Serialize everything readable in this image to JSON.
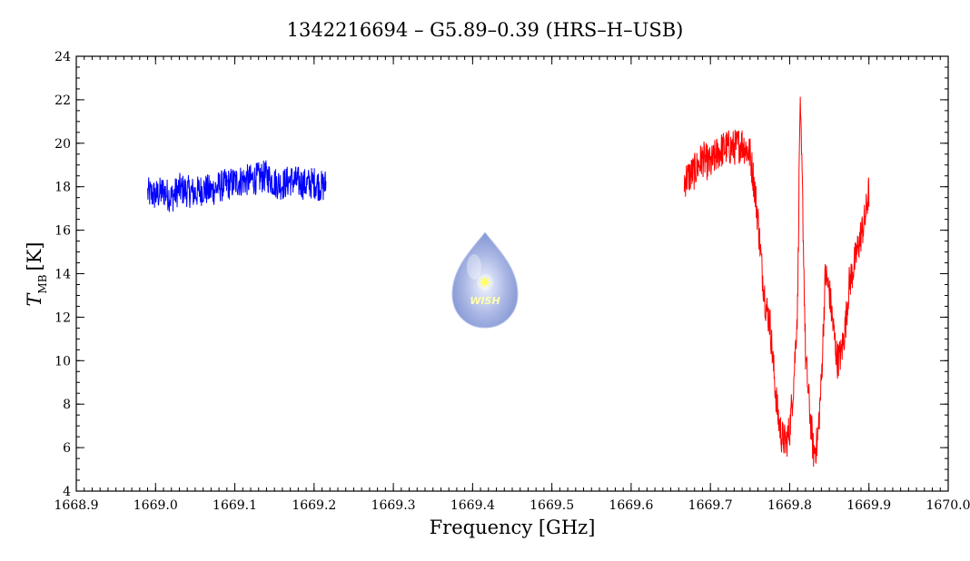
{
  "chart_data": {
    "type": "line",
    "title": "1342216694 – G5.89–0.39 (HRS–H–USB)",
    "xlabel": "Frequency [GHz]",
    "ylabel_main": "T",
    "ylabel_sub": "MB",
    "ylabel_unit": "[K]",
    "xlim": [
      1668.9,
      1670.0
    ],
    "ylim": [
      4,
      24
    ],
    "x_ticks": [
      "1668.9",
      "1669.0",
      "1669.1",
      "1669.2",
      "1669.3",
      "1669.4",
      "1669.5",
      "1669.6",
      "1669.7",
      "1669.8",
      "1669.9",
      "1670.0"
    ],
    "y_ticks": [
      "4",
      "6",
      "8",
      "10",
      "12",
      "14",
      "16",
      "18",
      "20",
      "22",
      "24"
    ],
    "grid": false,
    "series": [
      {
        "color": "#0000ff",
        "x": [
          1668.99,
          1669.0,
          1669.01,
          1669.02,
          1669.03,
          1669.04,
          1669.05,
          1669.06,
          1669.07,
          1669.08,
          1669.09,
          1669.1,
          1669.11,
          1669.12,
          1669.13,
          1669.14,
          1669.15,
          1669.16,
          1669.17,
          1669.18,
          1669.19,
          1669.2,
          1669.21,
          1669.215
        ],
        "y": [
          17.7,
          17.6,
          17.8,
          17.5,
          17.9,
          17.8,
          17.7,
          17.9,
          17.8,
          18.0,
          18.1,
          18.2,
          18.3,
          18.3,
          18.4,
          18.5,
          18.2,
          18.1,
          18.3,
          18.2,
          18.1,
          18.2,
          18.0,
          18.1
        ]
      },
      {
        "color": "#ff0000",
        "x": [
          1669.667,
          1669.68,
          1669.69,
          1669.7,
          1669.71,
          1669.72,
          1669.73,
          1669.74,
          1669.75,
          1669.755,
          1669.76,
          1669.765,
          1669.77,
          1669.775,
          1669.78,
          1669.785,
          1669.79,
          1669.795,
          1669.8,
          1669.805,
          1669.81,
          1669.813,
          1669.816,
          1669.82,
          1669.825,
          1669.83,
          1669.835,
          1669.84,
          1669.845,
          1669.85,
          1669.855,
          1669.86,
          1669.865,
          1669.87,
          1669.875,
          1669.88,
          1669.885,
          1669.89,
          1669.895,
          1669.9
        ],
        "y": [
          18.3,
          18.7,
          19.3,
          19.0,
          19.6,
          19.8,
          19.8,
          20.0,
          19.5,
          18.2,
          16.5,
          14.2,
          12.5,
          11.8,
          9.5,
          7.5,
          6.5,
          6.2,
          6.8,
          9.0,
          12.5,
          21.8,
          18.0,
          10.2,
          7.8,
          5.8,
          6.2,
          9.0,
          14.0,
          13.2,
          11.5,
          10.0,
          10.3,
          11.5,
          13.5,
          14.2,
          15.0,
          15.8,
          16.5,
          17.8
        ]
      }
    ]
  },
  "logo": {
    "text": "WISH",
    "star_glyph": "✷",
    "fill_light": "#dfe6f7",
    "fill_dark": "#7a8fd0",
    "star_color": "#ffff66"
  }
}
